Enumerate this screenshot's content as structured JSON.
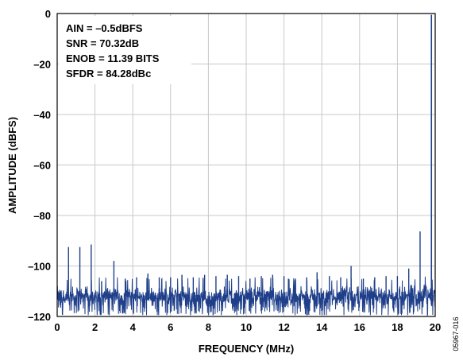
{
  "chart_data": {
    "type": "line",
    "title": "",
    "xlabel": "FREQUENCY (MHz)",
    "ylabel": "AMPLITUDE (dBFS)",
    "xlim": [
      0,
      20
    ],
    "ylim": [
      -120,
      0
    ],
    "x_ticks": [
      0,
      2,
      4,
      6,
      8,
      10,
      12,
      14,
      16,
      18,
      20
    ],
    "y_ticks": [
      0,
      -20,
      -40,
      -60,
      -80,
      -100,
      -120
    ],
    "x_tick_labels": [
      "0",
      "2",
      "4",
      "6",
      "8",
      "10",
      "12",
      "14",
      "16",
      "18",
      "20"
    ],
    "y_tick_labels": [
      "0",
      "–20",
      "–40",
      "–60",
      "–80",
      "–100",
      "–120"
    ],
    "grid": true,
    "line_color": "#1f3f8a",
    "annotations": [
      "AIN = –0.5dBFS",
      "SNR = 70.32dB",
      "ENOB = 11.39 BITS",
      "SFDR = 84.28dBc"
    ],
    "noise_floor": {
      "min": -119,
      "max": -106,
      "typical": -112
    },
    "spurs": [
      {
        "x": 0.6,
        "y": -92.5
      },
      {
        "x": 1.2,
        "y": -92.5
      },
      {
        "x": 1.8,
        "y": -91.5
      },
      {
        "x": 2.35,
        "y": -106
      },
      {
        "x": 3.0,
        "y": -98
      },
      {
        "x": 3.6,
        "y": -105
      },
      {
        "x": 4.2,
        "y": -104.5
      },
      {
        "x": 4.8,
        "y": -103
      },
      {
        "x": 5.4,
        "y": -104.5
      },
      {
        "x": 6.0,
        "y": -104.5
      },
      {
        "x": 6.6,
        "y": -103.5
      },
      {
        "x": 7.2,
        "y": -104.5
      },
      {
        "x": 7.8,
        "y": -103.5
      },
      {
        "x": 8.4,
        "y": -104
      },
      {
        "x": 9.0,
        "y": -103.5
      },
      {
        "x": 9.6,
        "y": -104
      },
      {
        "x": 10.2,
        "y": -105
      },
      {
        "x": 10.8,
        "y": -104
      },
      {
        "x": 11.4,
        "y": -103.5
      },
      {
        "x": 12.0,
        "y": -104
      },
      {
        "x": 12.6,
        "y": -105
      },
      {
        "x": 13.2,
        "y": -104.5
      },
      {
        "x": 13.75,
        "y": -102.5
      },
      {
        "x": 14.4,
        "y": -104
      },
      {
        "x": 15.0,
        "y": -104.5
      },
      {
        "x": 15.55,
        "y": -100
      },
      {
        "x": 16.2,
        "y": -105
      },
      {
        "x": 16.8,
        "y": -104.5
      },
      {
        "x": 17.4,
        "y": -104
      },
      {
        "x": 18.0,
        "y": -104
      },
      {
        "x": 18.6,
        "y": -101
      },
      {
        "x": 19.2,
        "y": -86.3
      }
    ],
    "fundamental": {
      "x": 19.8,
      "y": -0.5
    }
  },
  "figure_id": "05967-016"
}
